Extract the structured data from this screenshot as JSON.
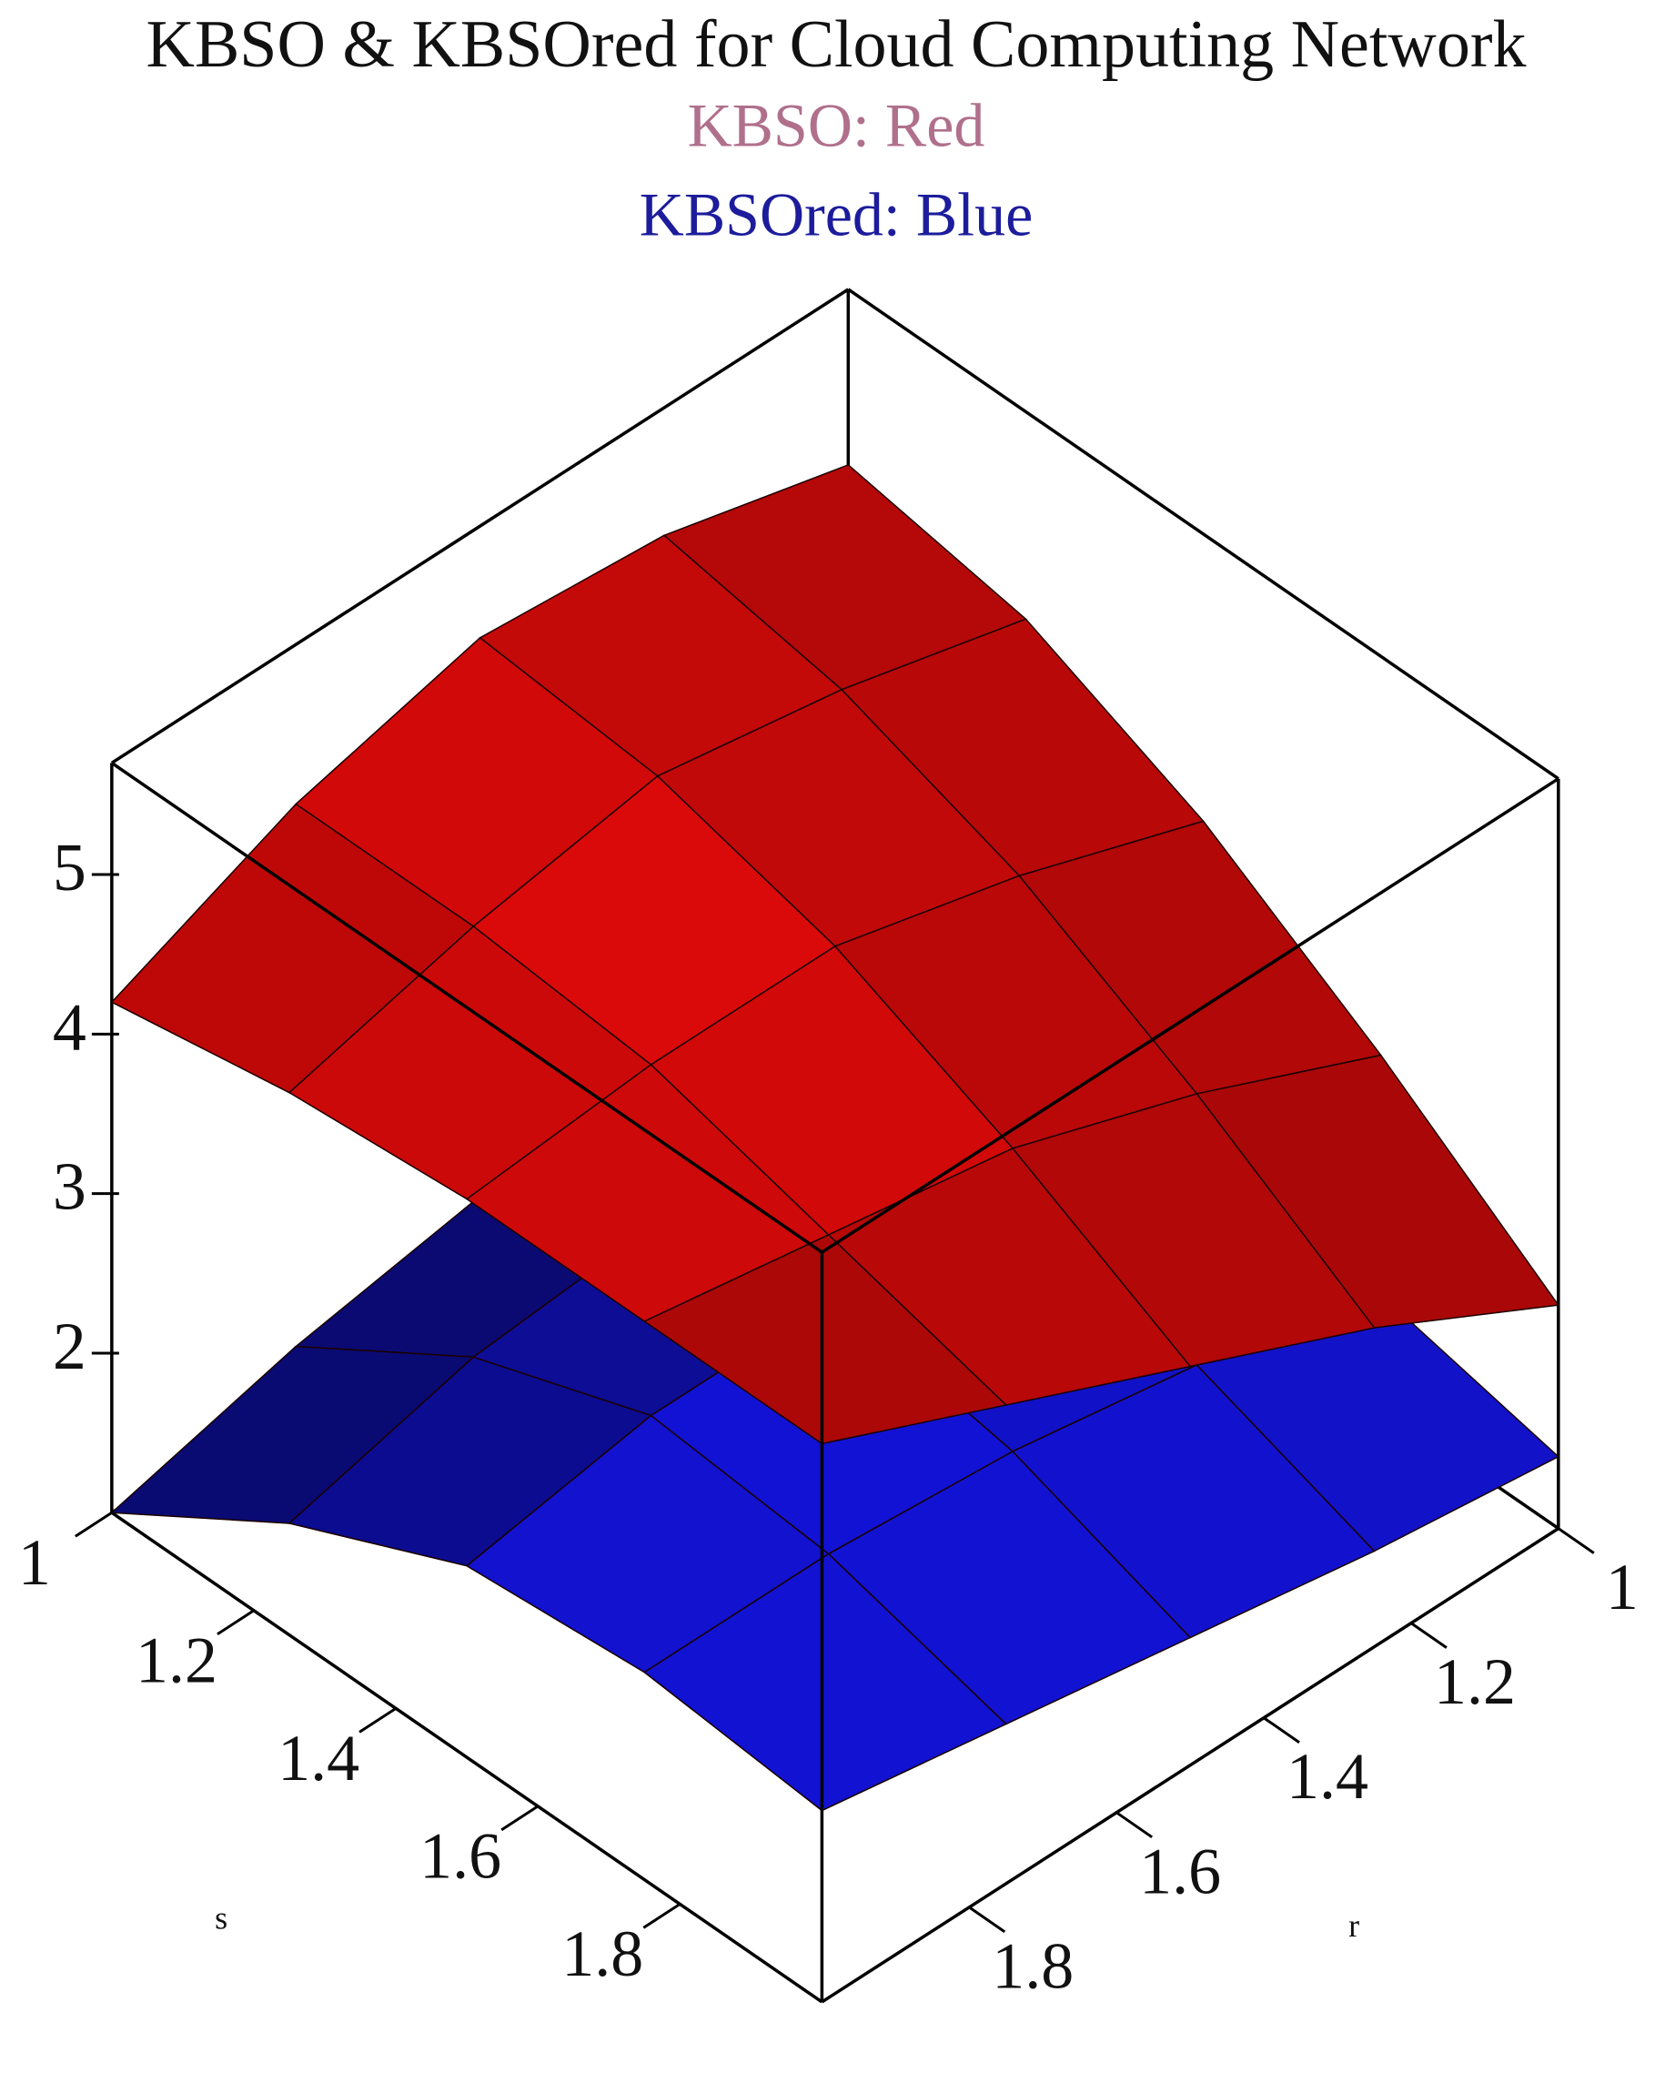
{
  "chart_data": {
    "type": "surface3d",
    "title": "KBSO & KBSOred for Cloud Computing Network",
    "subtitles": [
      {
        "text": "KBSO: Red",
        "color": "#b0708c"
      },
      {
        "text": "KBSOred: Blue",
        "color": "#1c1c9c"
      }
    ],
    "xlabel": "s",
    "ylabel": "r",
    "xlim": [
      1,
      2
    ],
    "ylim": [
      1,
      2
    ],
    "zlim": [
      1,
      5.7
    ],
    "xticks": [
      1,
      1.2,
      1.4,
      1.6,
      1.8
    ],
    "yticks": [
      1,
      1.2,
      1.4,
      1.6,
      1.8
    ],
    "zticks": [
      2,
      3,
      4,
      5
    ],
    "x": [
      1,
      1.25,
      1.5,
      1.75,
      2
    ],
    "y": [
      1,
      1.25,
      1.5,
      1.75,
      2
    ],
    "series": [
      {
        "color": "#1414e6",
        "z": [
          [
            1.2,
            1.6,
            1.8,
            1.7,
            1.45
          ],
          [
            1.4,
            1.9,
            2.2,
            2.0,
            1.6
          ],
          [
            1.5,
            2.1,
            2.4,
            2.2,
            1.8
          ],
          [
            1.3,
            2.0,
            2.4,
            2.3,
            2.0
          ],
          [
            1.0,
            1.7,
            2.2,
            2.3,
            2.2
          ]
        ]
      },
      {
        "color": "#e00a0a",
        "z": [
          [
            4.6,
            4.4,
            3.9,
            3.2,
            2.4
          ],
          [
            4.9,
            4.7,
            4.3,
            3.7,
            3.0
          ],
          [
            5.0,
            4.9,
            4.6,
            4.1,
            3.5
          ],
          [
            4.7,
            4.7,
            4.6,
            4.3,
            4.0
          ],
          [
            4.2,
            4.4,
            4.5,
            4.5,
            4.5
          ]
        ]
      }
    ]
  }
}
